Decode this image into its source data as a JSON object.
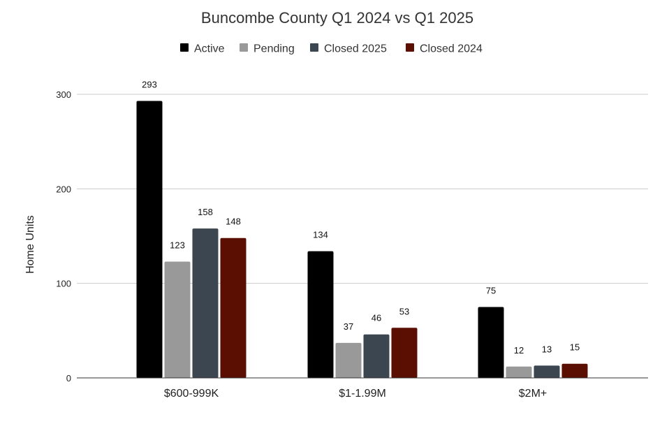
{
  "chart_data": {
    "type": "bar",
    "title": "Buncombe County Q1 2024 vs Q1 2025",
    "xlabel": "",
    "ylabel": "Home Units",
    "categories": [
      "$600-999K",
      "$1-1.99M",
      "$2M+"
    ],
    "series": [
      {
        "name": "Active",
        "color": "#000000",
        "values": [
          293,
          134,
          75
        ]
      },
      {
        "name": "Pending",
        "color": "#999999",
        "values": [
          123,
          37,
          12
        ]
      },
      {
        "name": "Closed 2025",
        "color": "#3c4650",
        "values": [
          158,
          46,
          13
        ]
      },
      {
        "name": "Closed 2024",
        "color": "#5a0f02",
        "values": [
          148,
          53,
          15
        ]
      }
    ],
    "ylim": [
      0,
      300
    ],
    "yticks": [
      0,
      100,
      200,
      300
    ],
    "grid": true,
    "legend_position": "top-center"
  }
}
